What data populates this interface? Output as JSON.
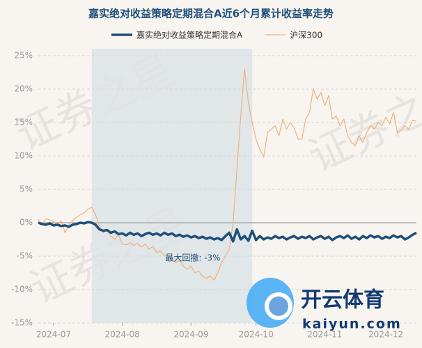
{
  "chart_data": {
    "type": "line",
    "title": "嘉实绝对收益策略定期混合A近6个月累计收益率走势",
    "watermark": "证券之星",
    "logo": {
      "text": "开云体育",
      "url": "kaiyun.com"
    },
    "categories": [
      null,
      null,
      null,
      null,
      "2024-07",
      null,
      null,
      null,
      null,
      null,
      null,
      null,
      null,
      null,
      null,
      null,
      null,
      null,
      null,
      null,
      null,
      null,
      "2024-08",
      null,
      null,
      null,
      null,
      null,
      null,
      null,
      null,
      null,
      null,
      null,
      null,
      null,
      null,
      null,
      null,
      null,
      "2024-09",
      null,
      null,
      null,
      null,
      null,
      null,
      null,
      null,
      null,
      null,
      null,
      null,
      null,
      null,
      null,
      null,
      "2024-10",
      null,
      null,
      null,
      null,
      null,
      null,
      null,
      null,
      null,
      null,
      null,
      null,
      null,
      null,
      null,
      null,
      null,
      "2024-11",
      null,
      null,
      null,
      null,
      null,
      null,
      null,
      null,
      null,
      null,
      null,
      null,
      null,
      null,
      null,
      "2024-12",
      null,
      null,
      null,
      null,
      null,
      null,
      null,
      null
    ],
    "series": [
      {
        "name": "嘉实绝对收益策略定期混合A",
        "color": "#1f4e79",
        "width": 3.5,
        "values": [
          0,
          -0.2,
          -0.3,
          -0.1,
          -0.4,
          -0.3,
          -0.5,
          -0.4,
          -0.6,
          -0.3,
          -0.2,
          0,
          -0.1,
          0.1,
          0,
          -0.3,
          -1.0,
          -1.2,
          -1.1,
          -1.5,
          -1.3,
          -1.7,
          -1.6,
          -1.9,
          -1.5,
          -1.8,
          -1.6,
          -2.0,
          -1.7,
          -1.5,
          -1.8,
          -1.6,
          -1.9,
          -1.5,
          -1.8,
          -1.6,
          -2.0,
          -1.8,
          -2.1,
          -1.9,
          -2.2,
          -2.0,
          -2.3,
          -2.1,
          -2.4,
          -2.2,
          -2.5,
          -2.3,
          -2.6,
          -2.0,
          -1.5,
          -2.8,
          -1.0,
          -2.5,
          -2.0,
          -2.7,
          -1.2,
          -2.6,
          -2.0,
          -2.5,
          -2.2,
          -2.4,
          -2.0,
          -2.3,
          -2.1,
          -2.5,
          -2.2,
          -2.0,
          -2.4,
          -2.1,
          -2.3,
          -2.0,
          -2.5,
          -2.2,
          -2.0,
          -2.4,
          -2.1,
          -2.6,
          -2.2,
          -2.0,
          -2.3,
          -1.9,
          -2.4,
          -2.1,
          -2.5,
          -2.0,
          -2.3,
          -1.9,
          -2.2,
          -2.0,
          -2.4,
          -2.1,
          -2.3,
          -1.9,
          -2.2,
          -2.0,
          -2.5,
          -2.2,
          -1.8,
          -1.5
        ]
      },
      {
        "name": "沪深300",
        "color": "#f0b27a",
        "width": 1.2,
        "values": [
          0.5,
          -0.3,
          0.6,
          0.4,
          0.2,
          -0.5,
          0.3,
          -1.5,
          -0.3,
          0.3,
          0.8,
          1.2,
          1.5,
          2.0,
          2.3,
          1.2,
          -0.5,
          -1.5,
          -1.0,
          -2.0,
          -2.5,
          -1.8,
          -3.2,
          -3.3,
          -3.0,
          -3.4,
          -3.1,
          -3.6,
          -3.2,
          -4.0,
          -3.5,
          -4.5,
          -4.2,
          -5.0,
          -4.8,
          -5.5,
          -6.0,
          -5.6,
          -6.5,
          -7.0,
          -6.5,
          -7.5,
          -7.2,
          -8.0,
          -8.3,
          -8.0,
          -8.6,
          -7.5,
          -6.0,
          -5.0,
          -4.0,
          0.0,
          8.0,
          16.0,
          23.0,
          18.0,
          15.0,
          12.5,
          11.0,
          9.8,
          13.5,
          14.0,
          14.5,
          13.0,
          15.5,
          14.0,
          15.0,
          14.2,
          12.5,
          12.5,
          15.5,
          16.5,
          20.0,
          18.5,
          19.5,
          17.5,
          19.0,
          15.5,
          16.0,
          14.5,
          15.5,
          13.0,
          12.0,
          11.5,
          13.0,
          12.0,
          13.5,
          14.5,
          14.0,
          15.0,
          14.5,
          15.8,
          14.8,
          16.5,
          13.5,
          13.8,
          14.5,
          14.0,
          15.3,
          15.2
        ]
      }
    ],
    "drawdown": {
      "label": "最大回撤: -3%",
      "value": -3,
      "index_range": [
        14,
        56
      ]
    },
    "ylim": [
      -15,
      25
    ],
    "yticks": [
      {
        "value": -15,
        "label": "-15%"
      },
      {
        "value": -10,
        "label": "-10%"
      },
      {
        "value": -5,
        "label": "-5%"
      },
      {
        "value": 0,
        "label": "0%"
      },
      {
        "value": 5,
        "label": "5%"
      },
      {
        "value": 10,
        "label": "10%"
      },
      {
        "value": 15,
        "label": "15%"
      },
      {
        "value": 20,
        "label": "20%"
      },
      {
        "value": 25,
        "label": "25%"
      }
    ],
    "grid": true,
    "legend": "top"
  }
}
